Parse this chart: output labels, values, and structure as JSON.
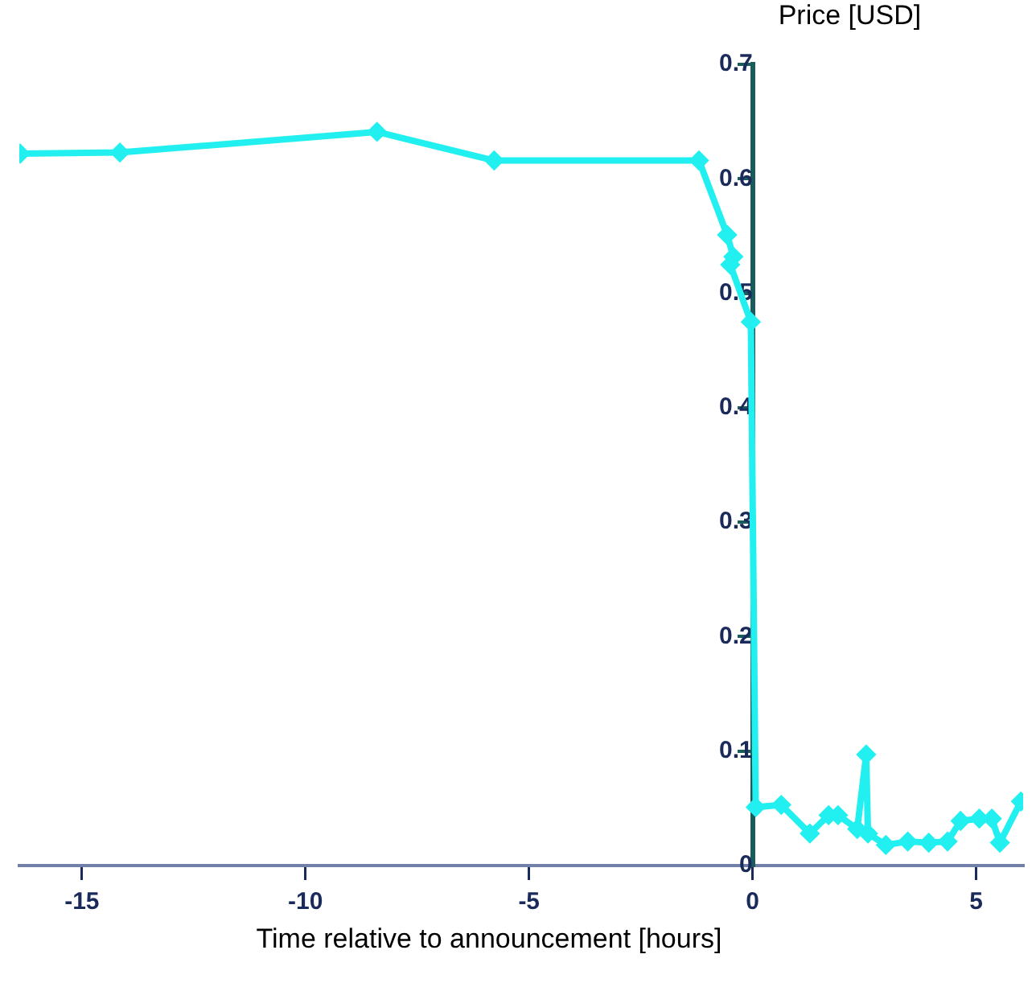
{
  "chart_data": {
    "type": "line",
    "xlabel": "Time relative to announcement [hours]",
    "ylabel": "Price [USD]",
    "xlim": [
      -16.4,
      6.05
    ],
    "ylim": [
      0,
      0.7
    ],
    "xticks": [
      -15,
      -10,
      -5,
      0,
      5
    ],
    "yticks": [
      0,
      0.1,
      0.2,
      0.3,
      0.4,
      0.5,
      0.6,
      0.7
    ],
    "grid": false,
    "legend": false,
    "marker": "diamond",
    "line_style": "solid",
    "series": [
      {
        "color": "#22f0f0",
        "x": [
          -16.38,
          -14.15,
          -8.4,
          -5.78,
          -1.2,
          -0.57,
          -0.43,
          -0.5,
          -0.04,
          0.07,
          0.64,
          1.28,
          1.7,
          1.91,
          2.34,
          2.54,
          2.58,
          2.98,
          3.47,
          3.94,
          4.36,
          4.65,
          5.07,
          5.35,
          5.53,
          6.0
        ],
        "values": [
          0.622,
          0.623,
          0.641,
          0.616,
          0.616,
          0.551,
          0.532,
          0.525,
          0.475,
          0.051,
          0.053,
          0.028,
          0.044,
          0.044,
          0.032,
          0.097,
          0.028,
          0.018,
          0.021,
          0.02,
          0.021,
          0.039,
          0.041,
          0.041,
          0.02,
          0.056
        ]
      }
    ]
  }
}
